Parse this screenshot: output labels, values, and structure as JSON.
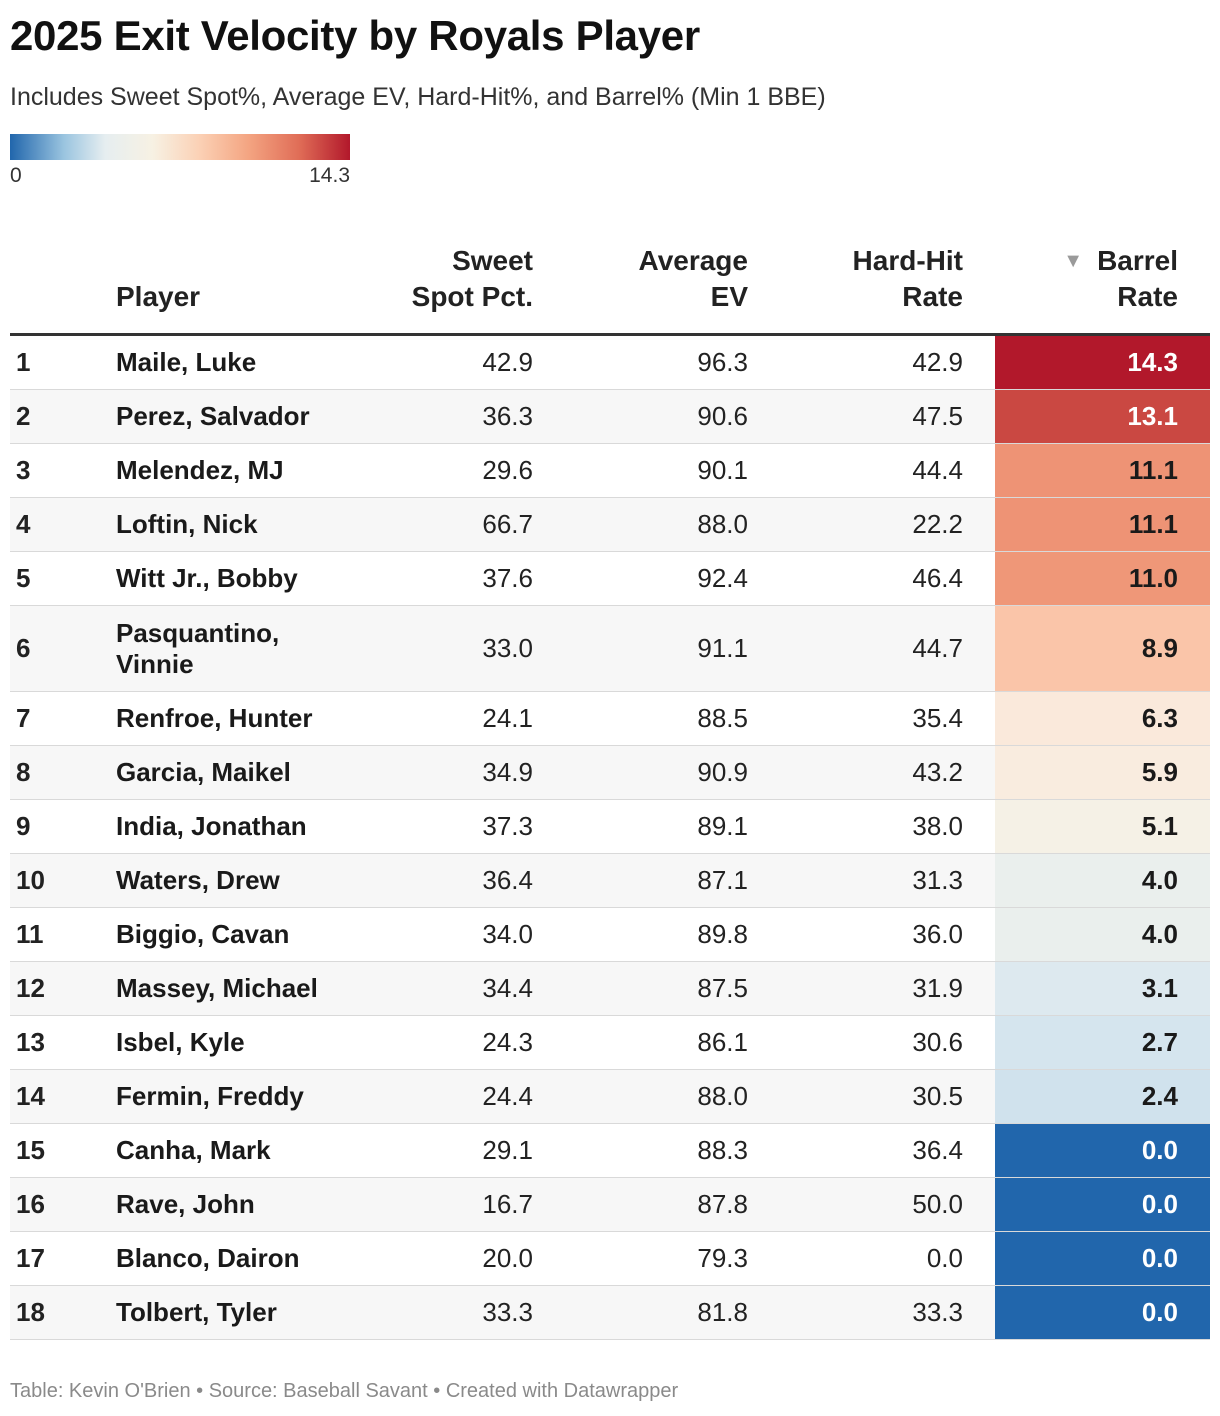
{
  "header": {
    "title": "2025 Exit Velocity by Royals Player",
    "subtitle": "Includes Sweet Spot%, Average EV, Hard-Hit%, and Barrel% (Min 1 BBE)"
  },
  "legend": {
    "min_label": "0",
    "max_label": "14.3",
    "min": 0,
    "max": 14.3
  },
  "columns": {
    "player": "Player",
    "sweet_spot_line1": "Sweet",
    "sweet_spot_line2": "Spot Pct.",
    "avg_ev_line1": "Average",
    "avg_ev_line2": "EV",
    "hard_hit_line1": "Hard-Hit",
    "hard_hit_line2": "Rate",
    "barrel_line1": "Barrel",
    "barrel_line2": "Rate",
    "sort_indicator": "▼"
  },
  "footer": "Table: Kevin O'Brien • Source: Baseball Savant • Created with Datawrapper",
  "colors": {
    "scale": [
      "#2166ac",
      "#c4dcec",
      "#e6eef0",
      "#f8f1e4",
      "#fbe1d3",
      "#fac4a8",
      "#f4a180",
      "#d6604d",
      "#b2182b"
    ]
  },
  "chart_data": {
    "type": "table",
    "title": "2025 Exit Velocity by Royals Player",
    "subtitle": "Includes Sweet Spot%, Average EV, Hard-Hit%, and Barrel% (Min 1 BBE)",
    "columns": [
      "Player",
      "Sweet Spot Pct.",
      "Average EV",
      "Hard-Hit Rate",
      "Barrel Rate"
    ],
    "sorted_by": "Barrel Rate",
    "rows": [
      {
        "rank": "1",
        "player": "Maile, Luke",
        "sweet_spot": "42.9",
        "avg_ev": "96.3",
        "hard_hit": "42.9",
        "barrel": "14.3"
      },
      {
        "rank": "2",
        "player": "Perez, Salvador",
        "sweet_spot": "36.3",
        "avg_ev": "90.6",
        "hard_hit": "47.5",
        "barrel": "13.1"
      },
      {
        "rank": "3",
        "player": "Melendez, MJ",
        "sweet_spot": "29.6",
        "avg_ev": "90.1",
        "hard_hit": "44.4",
        "barrel": "11.1"
      },
      {
        "rank": "4",
        "player": "Loftin, Nick",
        "sweet_spot": "66.7",
        "avg_ev": "88.0",
        "hard_hit": "22.2",
        "barrel": "11.1"
      },
      {
        "rank": "5",
        "player": "Witt Jr., Bobby",
        "sweet_spot": "37.6",
        "avg_ev": "92.4",
        "hard_hit": "46.4",
        "barrel": "11.0"
      },
      {
        "rank": "6",
        "player": "Pasquantino, Vinnie",
        "sweet_spot": "33.0",
        "avg_ev": "91.1",
        "hard_hit": "44.7",
        "barrel": "8.9"
      },
      {
        "rank": "7",
        "player": "Renfroe, Hunter",
        "sweet_spot": "24.1",
        "avg_ev": "88.5",
        "hard_hit": "35.4",
        "barrel": "6.3"
      },
      {
        "rank": "8",
        "player": "Garcia, Maikel",
        "sweet_spot": "34.9",
        "avg_ev": "90.9",
        "hard_hit": "43.2",
        "barrel": "5.9"
      },
      {
        "rank": "9",
        "player": "India, Jonathan",
        "sweet_spot": "37.3",
        "avg_ev": "89.1",
        "hard_hit": "38.0",
        "barrel": "5.1"
      },
      {
        "rank": "10",
        "player": "Waters, Drew",
        "sweet_spot": "36.4",
        "avg_ev": "87.1",
        "hard_hit": "31.3",
        "barrel": "4.0"
      },
      {
        "rank": "11",
        "player": "Biggio, Cavan",
        "sweet_spot": "34.0",
        "avg_ev": "89.8",
        "hard_hit": "36.0",
        "barrel": "4.0"
      },
      {
        "rank": "12",
        "player": "Massey, Michael",
        "sweet_spot": "34.4",
        "avg_ev": "87.5",
        "hard_hit": "31.9",
        "barrel": "3.1"
      },
      {
        "rank": "13",
        "player": "Isbel, Kyle",
        "sweet_spot": "24.3",
        "avg_ev": "86.1",
        "hard_hit": "30.6",
        "barrel": "2.7"
      },
      {
        "rank": "14",
        "player": "Fermin, Freddy",
        "sweet_spot": "24.4",
        "avg_ev": "88.0",
        "hard_hit": "30.5",
        "barrel": "2.4"
      },
      {
        "rank": "15",
        "player": "Canha, Mark",
        "sweet_spot": "29.1",
        "avg_ev": "88.3",
        "hard_hit": "36.4",
        "barrel": "0.0"
      },
      {
        "rank": "16",
        "player": "Rave, John",
        "sweet_spot": "16.7",
        "avg_ev": "87.8",
        "hard_hit": "50.0",
        "barrel": "0.0"
      },
      {
        "rank": "17",
        "player": "Blanco, Dairon",
        "sweet_spot": "20.0",
        "avg_ev": "79.3",
        "hard_hit": "0.0",
        "barrel": "0.0"
      },
      {
        "rank": "18",
        "player": "Tolbert, Tyler",
        "sweet_spot": "33.3",
        "avg_ev": "81.8",
        "hard_hit": "33.3",
        "barrel": "0.0"
      }
    ]
  }
}
